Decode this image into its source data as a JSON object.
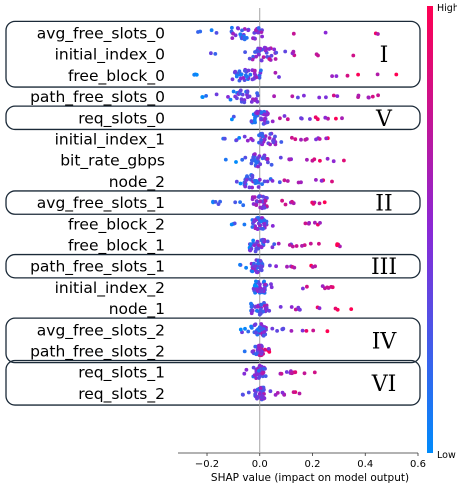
{
  "chart_data": {
    "type": "scatter",
    "subtype": "beeswarm",
    "xlabel": "SHAP value (impact on model output)",
    "xlim": [
      -0.31,
      0.6
    ],
    "xticks": [
      -0.2,
      0.0,
      0.2,
      0.4,
      0.6
    ],
    "xtick_labels": [
      "−0.2",
      "0.0",
      "0.2",
      "0.4",
      "0.6"
    ],
    "zero_line": 0.0,
    "colorbar": {
      "high_label": "High",
      "low_label": "Low",
      "high_color": "#ff0052",
      "mid_color": "#8a28d6",
      "low_color": "#008bfb"
    },
    "features": [
      {
        "name": "avg_free_slots_0",
        "shap_min": -0.3,
        "shap_max": 0.56,
        "median": -0.05
      },
      {
        "name": "initial_index_0",
        "shap_min": -0.29,
        "shap_max": 0.39,
        "median": 0.02
      },
      {
        "name": "free_block_0",
        "shap_min": -0.25,
        "shap_max": 0.53,
        "median": -0.05
      },
      {
        "name": "path_free_slots_0",
        "shap_min": -0.22,
        "shap_max": 0.46,
        "median": -0.05
      },
      {
        "name": "req_slots_0",
        "shap_min": -0.12,
        "shap_max": 0.34,
        "median": 0.0
      },
      {
        "name": "initial_index_1",
        "shap_min": -0.14,
        "shap_max": 0.34,
        "median": 0.03
      },
      {
        "name": "bit_rate_gbps",
        "shap_min": -0.13,
        "shap_max": 0.35,
        "median": 0.0
      },
      {
        "name": "node_2",
        "shap_min": -0.1,
        "shap_max": 0.33,
        "median": -0.03
      },
      {
        "name": "avg_free_slots_1",
        "shap_min": -0.19,
        "shap_max": 0.25,
        "median": 0.0
      },
      {
        "name": "free_block_2",
        "shap_min": -0.11,
        "shap_max": 0.29,
        "median": 0.0
      },
      {
        "name": "free_block_1",
        "shap_min": -0.1,
        "shap_max": 0.31,
        "median": -0.01
      },
      {
        "name": "path_free_slots_1",
        "shap_min": -0.09,
        "shap_max": 0.21,
        "median": -0.01
      },
      {
        "name": "initial_index_2",
        "shap_min": -0.06,
        "shap_max": 0.28,
        "median": 0.0
      },
      {
        "name": "node_1",
        "shap_min": -0.14,
        "shap_max": 0.37,
        "median": 0.0
      },
      {
        "name": "avg_free_slots_2",
        "shap_min": -0.09,
        "shap_max": 0.27,
        "median": 0.0
      },
      {
        "name": "path_free_slots_2",
        "shap_min": -0.06,
        "shap_max": 0.06,
        "median": 0.0
      },
      {
        "name": "req_slots_1",
        "shap_min": -0.09,
        "shap_max": 0.21,
        "median": 0.0
      },
      {
        "name": "req_slots_2",
        "shap_min": -0.08,
        "shap_max": 0.17,
        "median": 0.0
      }
    ],
    "groups": [
      {
        "label": "I",
        "features": [
          "avg_free_slots_0",
          "initial_index_0",
          "free_block_0"
        ]
      },
      {
        "label": "V",
        "features": [
          "req_slots_0"
        ]
      },
      {
        "label": "II",
        "features": [
          "avg_free_slots_1"
        ]
      },
      {
        "label": "III",
        "features": [
          "path_free_slots_1"
        ]
      },
      {
        "label": "IV",
        "features": [
          "avg_free_slots_2",
          "path_free_slots_2"
        ]
      },
      {
        "label": "VI",
        "features": [
          "req_slots_1",
          "req_slots_2"
        ]
      }
    ]
  }
}
